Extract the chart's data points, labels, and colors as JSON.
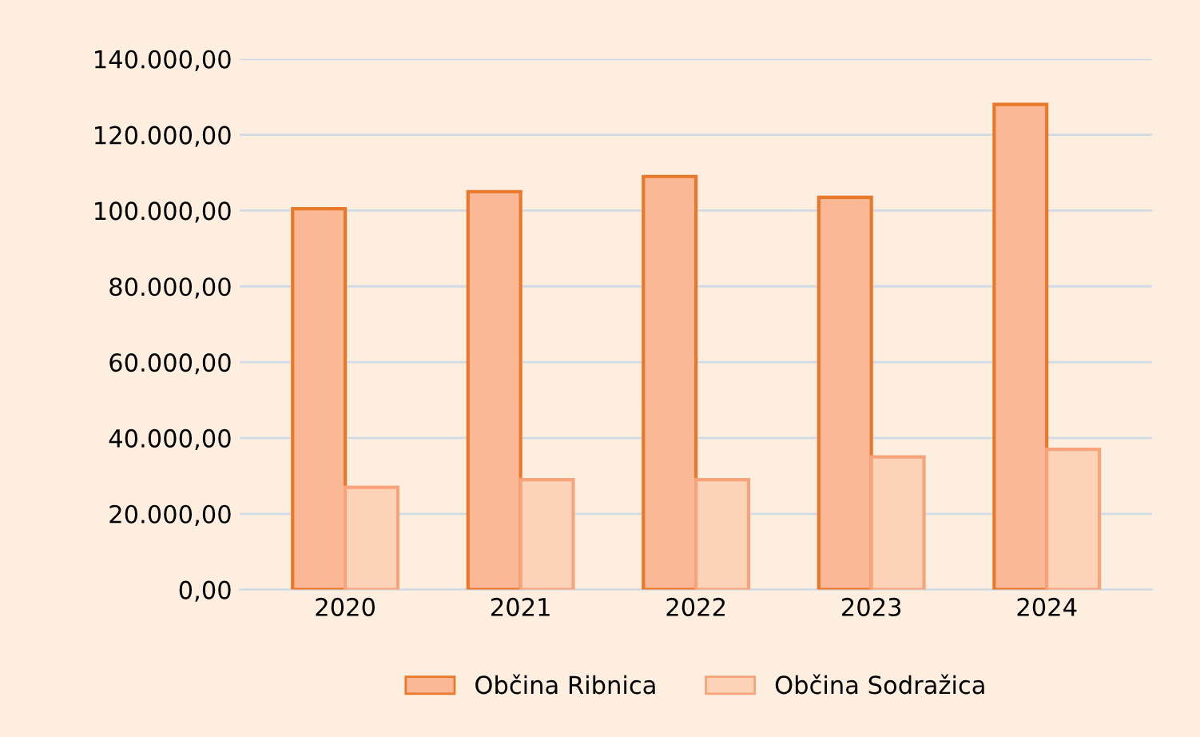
{
  "chart_data": {
    "type": "bar",
    "categories": [
      "2020",
      "2021",
      "2022",
      "2023",
      "2024"
    ],
    "series": [
      {
        "name": "Občina Ribnica",
        "color": "#fbb896",
        "values": [
          100500,
          105000,
          109000,
          103500,
          128000
        ]
      },
      {
        "name": "Občina Sodražica",
        "color": "#fdd3b8",
        "values": [
          27000,
          29000,
          29000,
          35000,
          37000
        ]
      }
    ],
    "ylim": [
      0,
      140000
    ],
    "yticks": [
      {
        "value": 0,
        "label": "0,00"
      },
      {
        "value": 20000,
        "label": "20.000,00"
      },
      {
        "value": 40000,
        "label": "40.000,00"
      },
      {
        "value": 60000,
        "label": "60.000,00"
      },
      {
        "value": 80000,
        "label": "80.000,00"
      },
      {
        "value": 100000,
        "label": "100.000,00"
      },
      {
        "value": 120000,
        "label": "120.000,00"
      },
      {
        "value": 140000,
        "label": "140.000,00"
      }
    ],
    "grid": "y",
    "legend": "bottom"
  }
}
